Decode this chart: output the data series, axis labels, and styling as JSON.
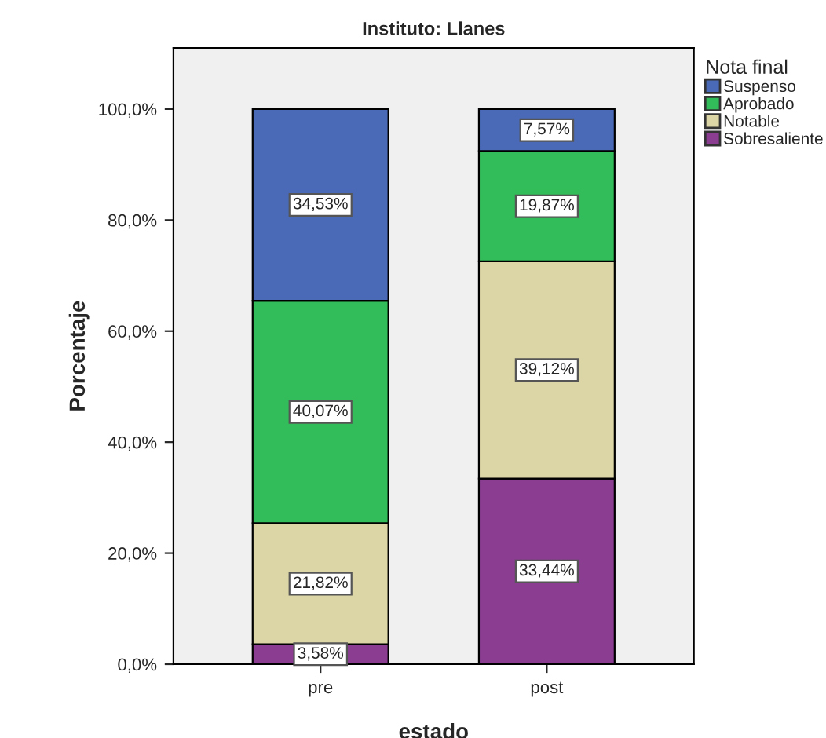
{
  "chart_data": {
    "type": "bar",
    "title": "Instituto: Llanes",
    "xlabel": "estado",
    "ylabel": "Porcentaje",
    "legend_title": "Nota final",
    "categories": [
      "pre",
      "post"
    ],
    "stacked": true,
    "legend": "top right",
    "series": [
      {
        "name": "Sobresaliente",
        "color": "#8a3d91",
        "values": [
          3.58,
          33.44
        ],
        "value_labels": [
          "3,58%",
          "33,44%"
        ]
      },
      {
        "name": "Notable",
        "color": "#dcd5a5",
        "values": [
          21.82,
          39.12
        ],
        "value_labels": [
          "21,82%",
          "39,12%"
        ]
      },
      {
        "name": "Aprobado",
        "color": "#33bd5a",
        "values": [
          40.07,
          19.87
        ],
        "value_labels": [
          "40,07%",
          "19,87%"
        ]
      },
      {
        "name": "Suspenso",
        "color": "#4a6ab8",
        "values": [
          34.53,
          7.57
        ],
        "value_labels": [
          "34,53%",
          "7,57%"
        ]
      }
    ],
    "ylim": [
      0,
      111
    ],
    "yticks": [
      {
        "value": 0,
        "label": "0,0%"
      },
      {
        "value": 20,
        "label": "20,0%"
      },
      {
        "value": 40,
        "label": "40,0%"
      },
      {
        "value": 60,
        "label": "60,0%"
      },
      {
        "value": 80,
        "label": "80,0%"
      },
      {
        "value": 100,
        "label": "100,0%"
      }
    ]
  }
}
